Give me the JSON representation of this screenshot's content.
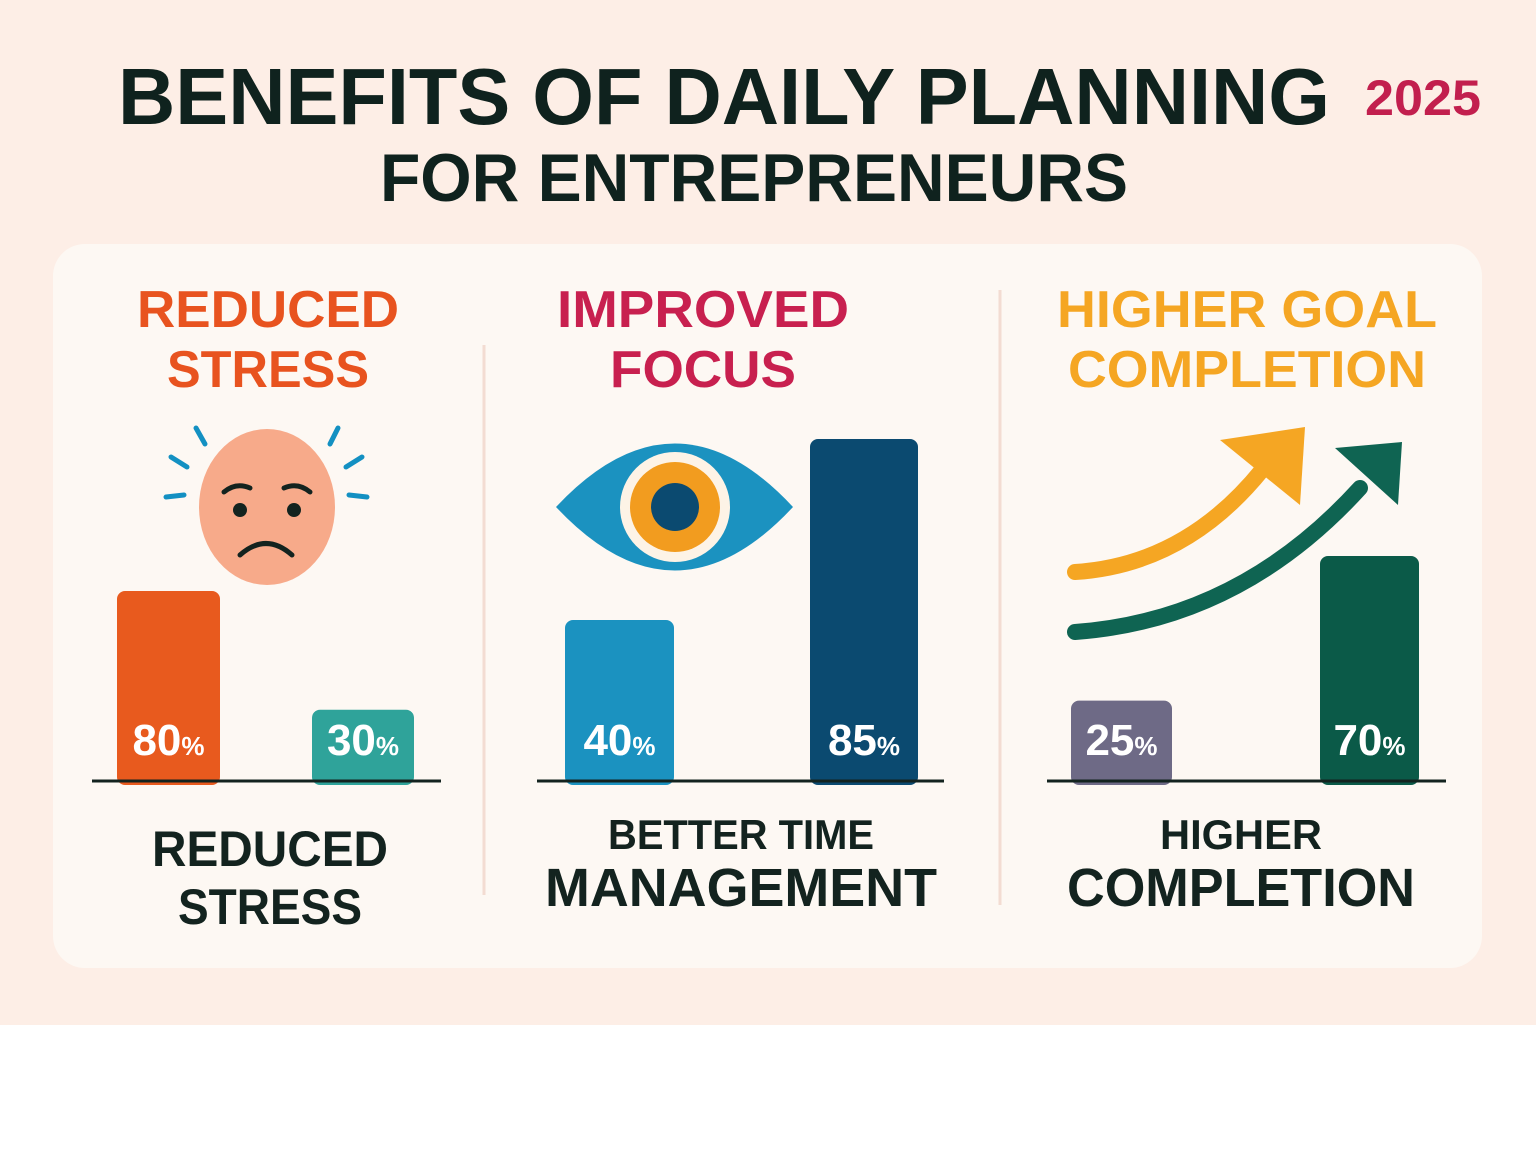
{
  "header": {
    "title_line1": "BENEFITS OF DAILY PLANNING",
    "year": "2025",
    "title_line2": "FOR ENTREPRENEURS"
  },
  "colors": {
    "background": "#fdeee6",
    "card": "#fdf8f3",
    "title": "#0f221e",
    "year": "#c21f4e"
  },
  "chart_data": [
    {
      "type": "bar",
      "heading": [
        "REDUCED",
        "STRESS"
      ],
      "heading_color": "#e8531f",
      "icon": "stressed-face-icon",
      "values": [
        80,
        30
      ],
      "labels": [
        "80",
        "30"
      ],
      "unit": "%",
      "colors": [
        "#e85a1e",
        "#2fa39a"
      ],
      "caption": [
        "REDUCED",
        "STRESS"
      ]
    },
    {
      "type": "bar",
      "heading": [
        "IMPROVED",
        "FOCUS"
      ],
      "heading_color": "#c8204f",
      "icon": "eye-icon",
      "values": [
        40,
        85
      ],
      "labels": [
        "40",
        "85"
      ],
      "unit": "%",
      "colors": [
        "#1b92c0",
        "#0b4a70"
      ],
      "caption": [
        "BETTER TIME",
        "MANAGEMENT"
      ]
    },
    {
      "type": "bar",
      "heading": [
        "HIGHER GOAL",
        "COMPLETION"
      ],
      "heading_color": "#f5a623",
      "icon": "rising-arrows-icon",
      "values": [
        25,
        70
      ],
      "labels": [
        "25",
        "70"
      ],
      "unit": "%",
      "colors": [
        "#6e6a86",
        "#0b5a48"
      ],
      "caption": [
        "HIGHER",
        "COMPLETION"
      ]
    }
  ]
}
